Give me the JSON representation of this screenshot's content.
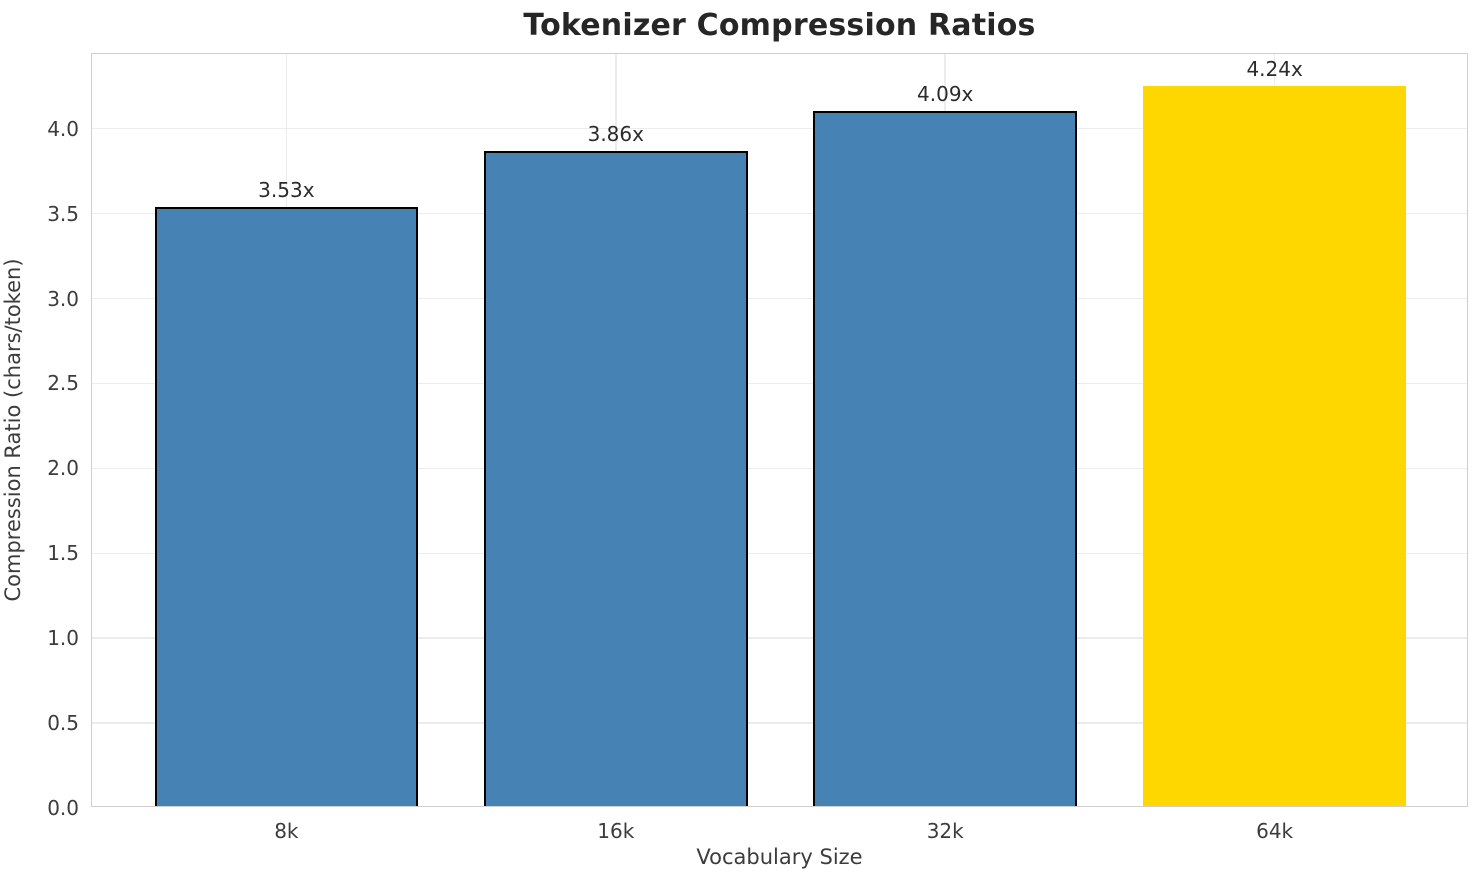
{
  "chart_data": {
    "type": "bar",
    "title": "Tokenizer Compression Ratios",
    "xlabel": "Vocabulary Size",
    "ylabel": "Compression Ratio (chars/token)",
    "categories": [
      "8k",
      "16k",
      "32k",
      "64k"
    ],
    "values": [
      3.53,
      3.86,
      4.09,
      4.24
    ],
    "bar_labels": [
      "3.53x",
      "3.86x",
      "4.09x",
      "4.24x"
    ],
    "bar_colors": [
      "#4682B4",
      "#4682B4",
      "#4682B4",
      "#FFD700"
    ],
    "bar_edge_colors": [
      "#000000",
      "#000000",
      "#000000",
      "none"
    ],
    "base_color": "#4682B4",
    "highlight_color": "#FFD700",
    "yticks": [
      0.0,
      0.5,
      1.0,
      1.5,
      2.0,
      2.5,
      3.0,
      3.5,
      4.0
    ],
    "ytick_labels": [
      "0.0",
      "0.5",
      "1.0",
      "1.5",
      "2.0",
      "2.5",
      "3.0",
      "3.5",
      "4.0"
    ],
    "ylim": [
      0,
      4.44
    ],
    "xlim": [
      -0.59,
      3.59
    ],
    "bar_width": 0.8,
    "grid": true,
    "legend": false
  }
}
